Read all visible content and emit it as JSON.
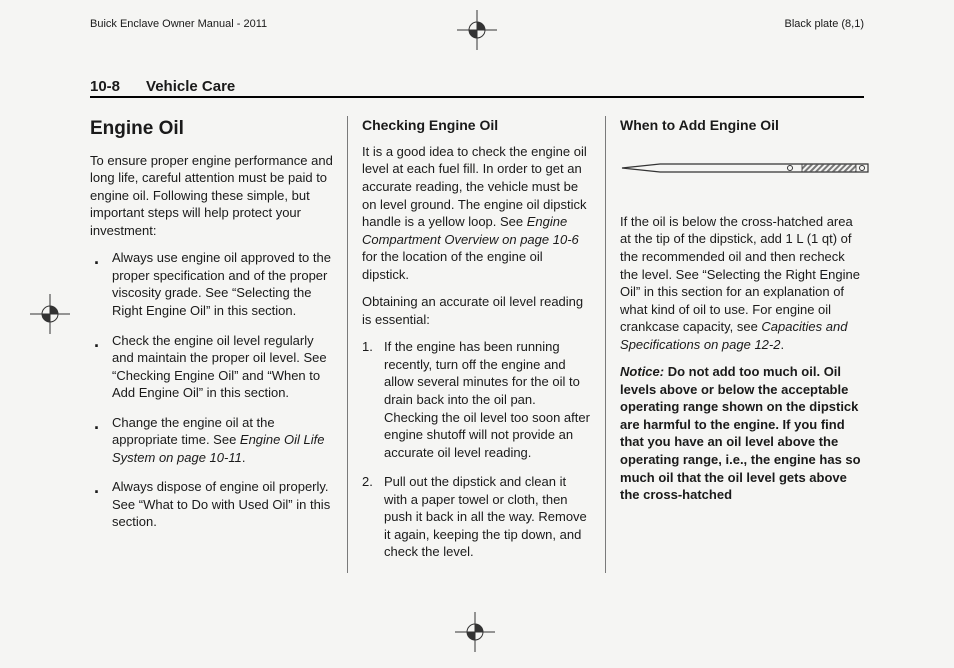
{
  "meta": {
    "manual_title": "Buick Enclave Owner Manual - 2011",
    "plate": "Black plate (8,1)"
  },
  "page_header": {
    "page_num": "10-8",
    "chapter": "Vehicle Care"
  },
  "col1": {
    "title": "Engine Oil",
    "intro": "To ensure proper engine performance and long life, careful attention must be paid to engine oil. Following these simple, but important steps will help protect your investment:",
    "bullets": [
      "Always use engine oil approved to the proper specification and of the proper viscosity grade. See “Selecting the Right Engine Oil” in this section.",
      "Check the engine oil level regularly and maintain the proper oil level. See “Checking Engine Oil” and “When to Add Engine Oil” in this section.",
      "__ITALIC__Change the engine oil at the appropriate time. See |Engine Oil Life System on page 10‑11|.",
      "Always dispose of engine oil properly. See “What to Do with Used Oil” in this section."
    ]
  },
  "col2": {
    "title": "Checking Engine Oil",
    "p1_a": "It is a good idea to check the engine oil level at each fuel fill. In order to get an accurate reading, the vehicle must be on level ground. The engine oil dipstick handle is a yellow loop. See ",
    "p1_i": "Engine Compartment Overview on page 10‑6",
    "p1_b": " for the location of the engine oil dipstick.",
    "p2": "Obtaining an accurate oil level reading is essential:",
    "nums": [
      "If the engine has been running recently, turn off the engine and allow several minutes for the oil to drain back into the oil pan. Checking the oil level too soon after engine shutoff will not provide an accurate oil level reading.",
      "Pull out the dipstick and clean it with a paper towel or cloth, then push it back in all the way. Remove it again, keeping the tip down, and check the level."
    ]
  },
  "col3": {
    "title": "When to Add Engine Oil",
    "p1_a": "If the oil is below the cross-hatched area at the tip of the dipstick, add 1 L (1 qt) of the recommended oil and then recheck the level. See “Selecting the Right Engine Oil” in this section for an explanation of what kind of oil to use. For engine oil crankcase capacity, see ",
    "p1_i": "Capacities and Specifications on page 12‑2",
    "p1_b": ".",
    "notice_label": "Notice:",
    "notice_body": "Do not add too much oil. Oil levels above or below the acceptable operating range shown on the dipstick are harmful to the engine. If you find that you have an oil level above the operating range, i.e., the engine has so much oil that the oil level gets above the cross-hatched"
  },
  "dipstick": {
    "stroke": "#333333",
    "hatch_fill": "#8a8a8a"
  }
}
